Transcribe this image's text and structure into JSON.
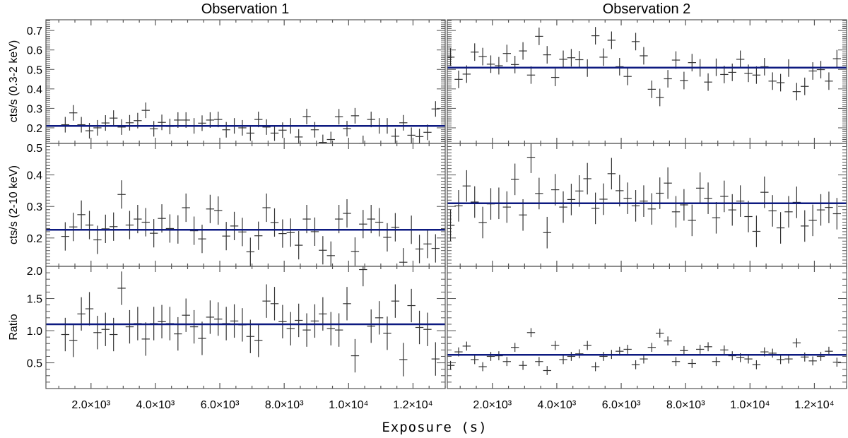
{
  "figure": {
    "xlabel": "Exposure (s)",
    "columns": [
      "Observation 1",
      "Observation 2"
    ],
    "ylabels": [
      "cts/s (0.3-2 keV)",
      "cts/s (2-10 keV)",
      "Ratio"
    ],
    "x_ticks": [
      {
        "value": 2000,
        "label": "2.0×10³"
      },
      {
        "value": 4000,
        "label": "4.0×10³"
      },
      {
        "value": 6000,
        "label": "6.0×10³"
      },
      {
        "value": 8000,
        "label": "8.0×10³"
      },
      {
        "value": 10000,
        "label": "1.0×10⁴"
      },
      {
        "value": 12000,
        "label": "1.2×10⁴"
      }
    ],
    "colors": {
      "data": "#333333",
      "model": "#0d1a80",
      "axis": "#555555"
    }
  },
  "chart_data": [
    {
      "type": "scatter",
      "column": 0,
      "row": 0,
      "title": "Observation 1",
      "ylabel": "cts/s (0.3-2 keV)",
      "xlim": [
        600,
        13000
      ],
      "ylim": [
        0.12,
        0.755
      ],
      "y_ticks": [
        {
          "value": 0.2,
          "label": "0.2"
        },
        {
          "value": 0.3,
          "label": "0.3"
        },
        {
          "value": 0.4,
          "label": "0.4"
        },
        {
          "value": 0.5,
          "label": "0.5"
        },
        {
          "value": 0.6,
          "label": "0.6"
        },
        {
          "value": 0.7,
          "label": "0.7"
        }
      ],
      "y_major_step": 0.1,
      "y_minor_step": 0.01,
      "x_start": 1200,
      "x_step": 250,
      "xerr": 125,
      "yerr": 0.04,
      "model_value": 0.21,
      "y": [
        0.216,
        0.277,
        0.216,
        0.185,
        0.2,
        0.225,
        0.25,
        0.204,
        0.226,
        0.237,
        0.29,
        0.195,
        0.228,
        0.207,
        0.24,
        0.24,
        0.21,
        0.224,
        0.24,
        0.243,
        0.19,
        0.21,
        0.2,
        0.173,
        0.243,
        0.204,
        0.173,
        0.188,
        0.21,
        0.153,
        0.258,
        0.19,
        0.125,
        0.14,
        0.257,
        0.196,
        0.262,
        0.12,
        0.243,
        0.21,
        0.21,
        0.157,
        0.226,
        0.162,
        0.155,
        0.177,
        0.297
      ]
    },
    {
      "type": "scatter",
      "column": 0,
      "row": 1,
      "title": "Observation 1",
      "ylabel": "cts/s (2-10 keV)",
      "xlim": [
        600,
        13000
      ],
      "ylim": [
        0.11,
        0.5
      ],
      "y_ticks": [
        {
          "value": 0.2,
          "label": "0.2"
        },
        {
          "value": 0.3,
          "label": "0.3"
        },
        {
          "value": 0.4,
          "label": "0.4"
        },
        {
          "value": 0.5,
          "label": "0.5"
        }
      ],
      "y_major_step": 0.1,
      "y_minor_step": 0.01,
      "x_start": 1200,
      "x_step": 250,
      "xerr": 125,
      "yerr": 0.045,
      "model_value": 0.226,
      "y": [
        0.205,
        0.235,
        0.274,
        0.241,
        0.194,
        0.229,
        0.236,
        0.338,
        0.241,
        0.26,
        0.25,
        0.215,
        0.262,
        0.23,
        0.227,
        0.296,
        0.223,
        0.197,
        0.292,
        0.287,
        0.206,
        0.238,
        0.219,
        0.156,
        0.207,
        0.296,
        0.249,
        0.214,
        0.217,
        0.177,
        0.26,
        0.22,
        0.161,
        0.144,
        0.26,
        0.278,
        0.157,
        0.244,
        0.26,
        0.25,
        0.202,
        0.234,
        0.123,
        0.226,
        0.165,
        0.181,
        0.167
      ]
    },
    {
      "type": "scatter",
      "column": 0,
      "row": 2,
      "title": "Observation 1",
      "ylabel": "Ratio",
      "xlim": [
        600,
        13000
      ],
      "ylim": [
        0.1,
        2.0
      ],
      "y_ticks": [
        {
          "value": 0.5,
          "label": "0.5"
        },
        {
          "value": 1.0,
          "label": "1.0"
        },
        {
          "value": 1.5,
          "label": "1.5"
        },
        {
          "value": 2.0,
          "label": "2.0"
        }
      ],
      "y_major_step": 0.5,
      "y_minor_step": 0.1,
      "x_start": 1200,
      "x_step": 250,
      "xerr": 125,
      "yerr": 0.26,
      "model_value": 1.1,
      "y": [
        0.94,
        0.85,
        1.26,
        1.34,
        0.97,
        1.02,
        0.94,
        1.66,
        1.06,
        1.11,
        0.87,
        1.11,
        1.14,
        1.11,
        0.95,
        1.24,
        1.06,
        0.88,
        1.21,
        1.18,
        1.11,
        1.15,
        1.09,
        0.91,
        0.85,
        1.46,
        1.42,
        1.14,
        1.03,
        1.16,
        1.01,
        1.15,
        1.26,
        1.03,
        1.01,
        1.42,
        0.61,
        1.95,
        1.07,
        1.2,
        0.96,
        1.46,
        0.55,
        1.39,
        1.05,
        1.02,
        0.56
      ]
    },
    {
      "type": "scatter",
      "column": 1,
      "row": 0,
      "title": "Observation 2",
      "ylabel": "cts/s (0.3-2 keV)",
      "xlim": [
        600,
        13000
      ],
      "ylim": [
        0.12,
        0.755
      ],
      "y_ticks": [],
      "y_major_step": 0.1,
      "y_minor_step": 0.01,
      "x_start": 700,
      "x_step": 250,
      "xerr": 125,
      "yerr": 0.045,
      "model_value": 0.509,
      "y": [
        0.563,
        0.449,
        0.476,
        0.589,
        0.566,
        0.527,
        0.519,
        0.582,
        0.525,
        0.595,
        0.471,
        0.67,
        0.575,
        0.459,
        0.552,
        0.56,
        0.55,
        0.507,
        0.673,
        0.563,
        0.65,
        0.514,
        0.464,
        0.643,
        0.57,
        0.398,
        0.356,
        0.452,
        0.548,
        0.443,
        0.535,
        0.508,
        0.435,
        0.511,
        0.474,
        0.485,
        0.552,
        0.48,
        0.471,
        0.514,
        0.44,
        0.432,
        0.507,
        0.386,
        0.413,
        0.492,
        0.499,
        0.44,
        0.555
      ]
    },
    {
      "type": "scatter",
      "column": 1,
      "row": 1,
      "title": "Observation 2",
      "ylabel": "cts/s (2-10 keV)",
      "xlim": [
        600,
        13000
      ],
      "ylim": [
        0.11,
        0.5
      ],
      "y_ticks": [],
      "y_major_step": 0.1,
      "y_minor_step": 0.01,
      "x_start": 700,
      "x_step": 250,
      "xerr": 125,
      "yerr": 0.05,
      "model_value": 0.31,
      "y": [
        0.24,
        0.302,
        0.365,
        0.314,
        0.249,
        0.308,
        0.31,
        0.298,
        0.386,
        0.273,
        0.456,
        0.341,
        0.217,
        0.353,
        0.298,
        0.322,
        0.349,
        0.388,
        0.294,
        0.323,
        0.404,
        0.35,
        0.326,
        0.302,
        0.317,
        0.292,
        0.342,
        0.374,
        0.283,
        0.305,
        0.256,
        0.358,
        0.326,
        0.264,
        0.332,
        0.289,
        0.317,
        0.268,
        0.221,
        0.345,
        0.286,
        0.232,
        0.283,
        0.313,
        0.238,
        0.256,
        0.289,
        0.297,
        0.277
      ]
    },
    {
      "type": "scatter",
      "column": 1,
      "row": 2,
      "title": "Observation 2",
      "ylabel": "Ratio",
      "xlim": [
        600,
        13000
      ],
      "ylim": [
        0.1,
        2.0
      ],
      "y_ticks": [],
      "y_major_step": 0.5,
      "y_minor_step": 0.1,
      "x_start": 700,
      "x_step": 250,
      "xerr": 125,
      "yerr": 0.07,
      "model_value": 0.625,
      "y": [
        0.46,
        0.67,
        0.76,
        0.55,
        0.44,
        0.6,
        0.61,
        0.52,
        0.74,
        0.46,
        0.97,
        0.52,
        0.38,
        0.77,
        0.55,
        0.6,
        0.64,
        0.77,
        0.44,
        0.6,
        0.63,
        0.68,
        0.71,
        0.47,
        0.56,
        0.74,
        0.96,
        0.84,
        0.52,
        0.69,
        0.49,
        0.71,
        0.75,
        0.52,
        0.7,
        0.61,
        0.58,
        0.56,
        0.47,
        0.67,
        0.65,
        0.55,
        0.56,
        0.81,
        0.59,
        0.53,
        0.6,
        0.68,
        0.51
      ]
    }
  ]
}
